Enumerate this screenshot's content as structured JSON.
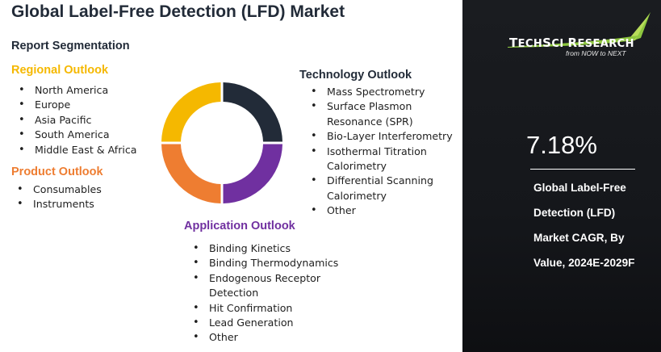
{
  "title": "Global Label-Free Detection (LFD) Market",
  "subtitle": "Report Segmentation",
  "colors": {
    "regional": "#f5b800",
    "product": "#ee7d31",
    "application": "#7030a0",
    "technology": "#222b38",
    "panel": "#16181c"
  },
  "regional": {
    "heading": "Regional Outlook",
    "items": [
      "North America",
      "Europe",
      "Asia Pacific",
      "South America",
      "Middle East & Africa"
    ]
  },
  "product": {
    "heading": "Product Outlook",
    "items": [
      "Consumables",
      "Instruments"
    ]
  },
  "technology": {
    "heading": "Technology Outlook",
    "items": [
      "Mass Spectrometry",
      "Surface Plasmon",
      "Resonance (SPR)",
      "Bio-Layer Interferometry",
      "Isothermal Titration",
      "Calorimetry",
      "Differential Scanning",
      "Calorimetry",
      "Other"
    ]
  },
  "application": {
    "heading": "Application Outlook",
    "items": [
      "Binding Kinetics",
      "Binding Thermodynamics",
      "Endogenous Receptor",
      "Detection",
      "Hit Confirmation",
      "Lead Generation",
      "Other"
    ]
  },
  "donut": {
    "segments": [
      "technology",
      "application",
      "product",
      "regional"
    ],
    "icon": "donut-ring-icon"
  },
  "logo": {
    "brand": "TechSci Research",
    "brand_display": [
      "T",
      "ECH",
      "S",
      "CI ",
      "R",
      "ESEARCH"
    ],
    "tagline": "from NOW to NEXT",
    "icon": "techsci-swoosh-icon"
  },
  "cagr": {
    "value": "7.18%",
    "lines": [
      "Global Label-Free",
      "Detection (LFD)",
      "Market CAGR, By",
      "Value, 2024E-2029F"
    ]
  }
}
